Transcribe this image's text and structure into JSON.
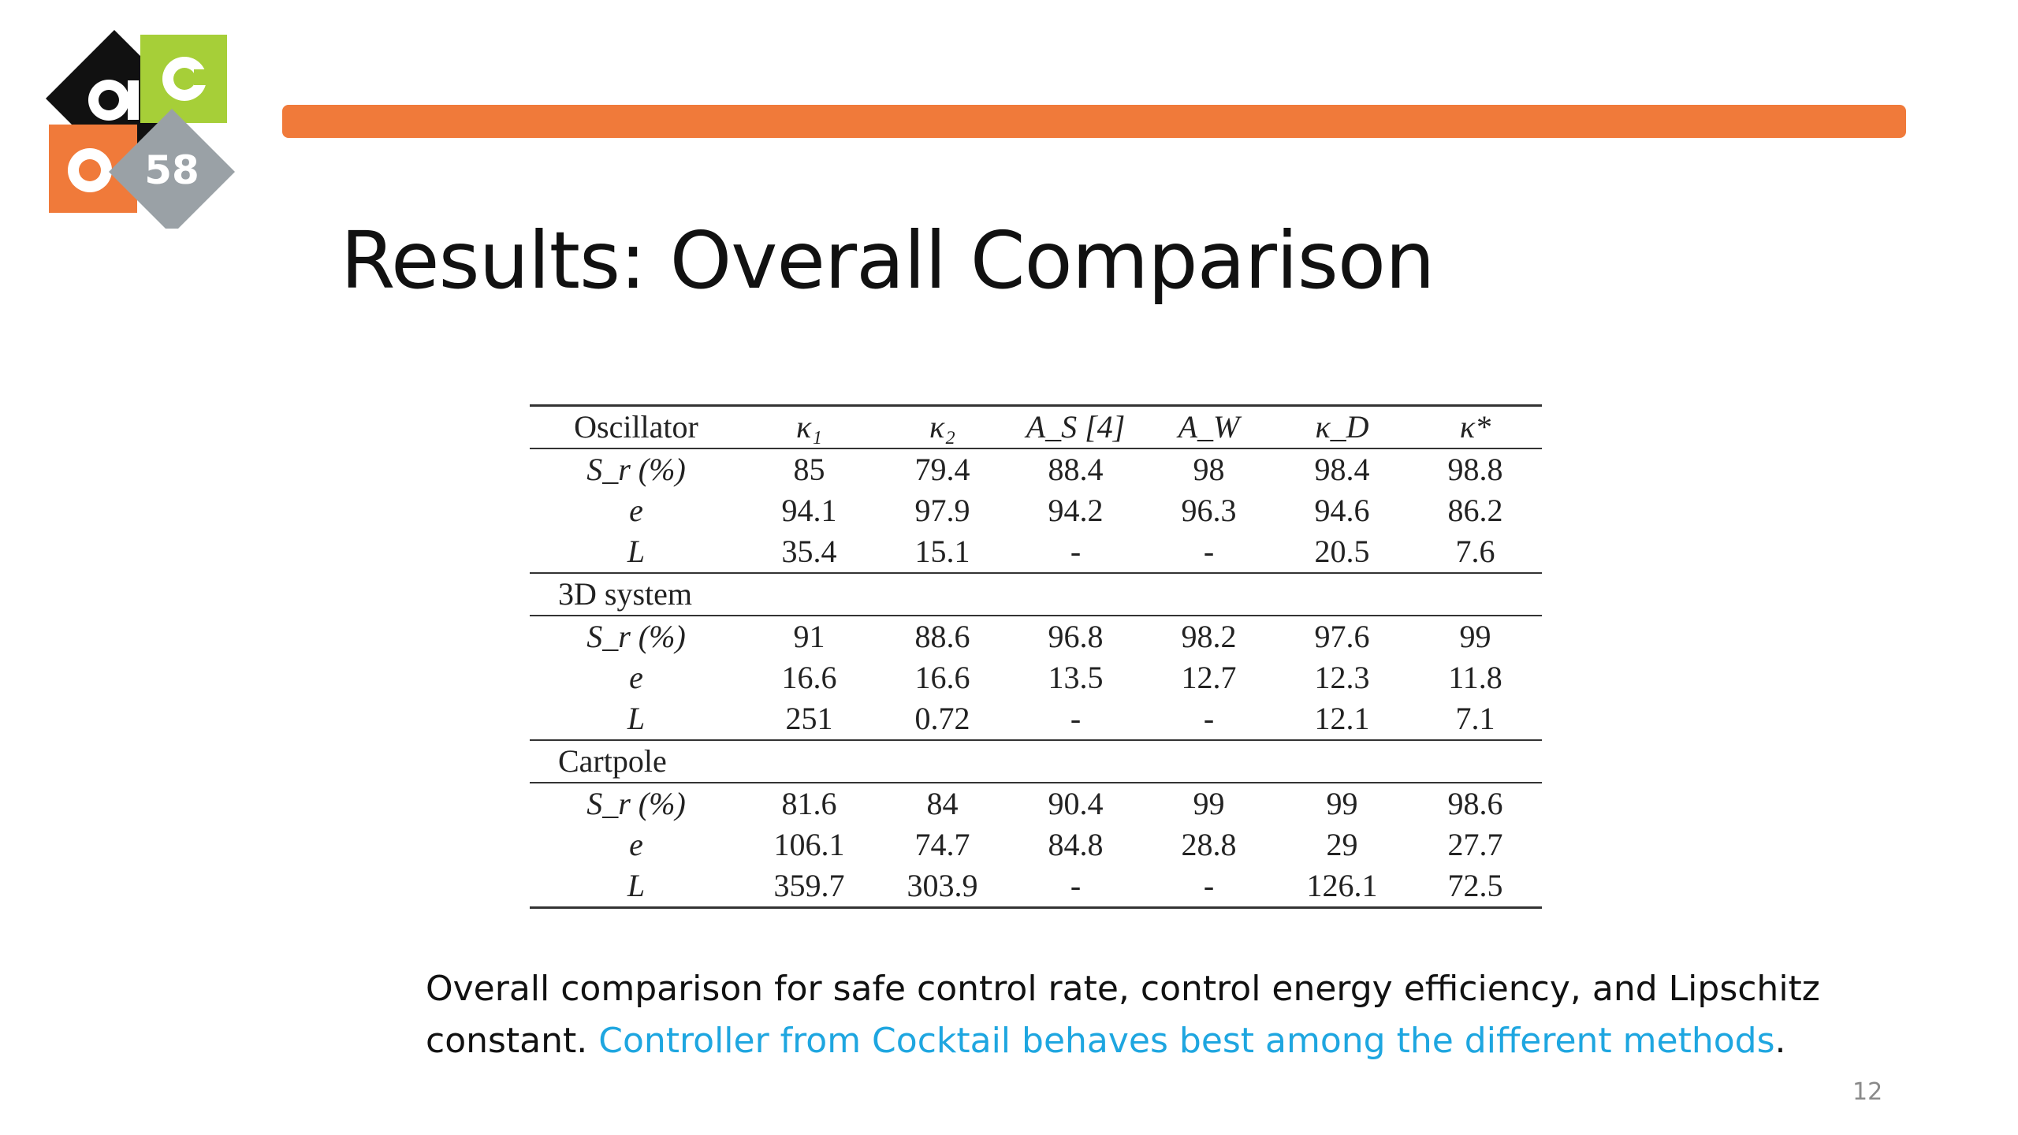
{
  "logo": {
    "number": "58"
  },
  "title": "Results: Overall Comparison",
  "table": {
    "columns": [
      "Oscillator",
      "κ₁",
      "κ₂",
      "A_S [4]",
      "A_W",
      "κ_D",
      "κ*"
    ],
    "groups": [
      {
        "name": "Oscillator",
        "rows": [
          {
            "metric": "S_r (%)",
            "values": [
              "85",
              "79.4",
              "88.4",
              "98",
              "98.4",
              "98.8"
            ],
            "best": [
              5
            ]
          },
          {
            "metric": "e",
            "values": [
              "94.1",
              "97.9",
              "94.2",
              "96.3",
              "94.6",
              "86.2"
            ],
            "best": [
              5
            ]
          },
          {
            "metric": "L",
            "values": [
              "35.4",
              "15.1",
              "-",
              "-",
              "20.5",
              "7.6"
            ],
            "best": [
              5
            ]
          }
        ]
      },
      {
        "name": "3D system",
        "rows": [
          {
            "metric": "S_r (%)",
            "values": [
              "91",
              "88.6",
              "96.8",
              "98.2",
              "97.6",
              "99"
            ],
            "best": [
              5
            ]
          },
          {
            "metric": "e",
            "values": [
              "16.6",
              "16.6",
              "13.5",
              "12.7",
              "12.3",
              "11.8"
            ],
            "best": [
              5
            ]
          },
          {
            "metric": "L",
            "values": [
              "251",
              "0.72",
              "-",
              "-",
              "12.1",
              "7.1"
            ],
            "best": [
              1
            ]
          }
        ]
      },
      {
        "name": "Cartpole",
        "rows": [
          {
            "metric": "S_r (%)",
            "values": [
              "81.6",
              "84",
              "90.4",
              "99",
              "99",
              "98.6"
            ],
            "best": [
              3,
              4
            ]
          },
          {
            "metric": "e",
            "values": [
              "106.1",
              "74.7",
              "84.8",
              "28.8",
              "29",
              "27.7"
            ],
            "best": [
              5
            ]
          },
          {
            "metric": "L",
            "values": [
              "359.7",
              "303.9",
              "-",
              "-",
              "126.1",
              "72.5"
            ],
            "best": [
              5
            ]
          }
        ]
      }
    ]
  },
  "caption": {
    "text": "Overall comparison for safe control rate, control energy efficiency, and Lipschitz constant. ",
    "highlight": "Controller from Cocktail behaves best among the different methods",
    "tail": "."
  },
  "page_number": "12",
  "colors": {
    "accent_orange": "#f07a3a",
    "highlight_blue": "#1ea6e0",
    "logo_green": "#a6cf38",
    "logo_gray": "#9aa1a6"
  }
}
